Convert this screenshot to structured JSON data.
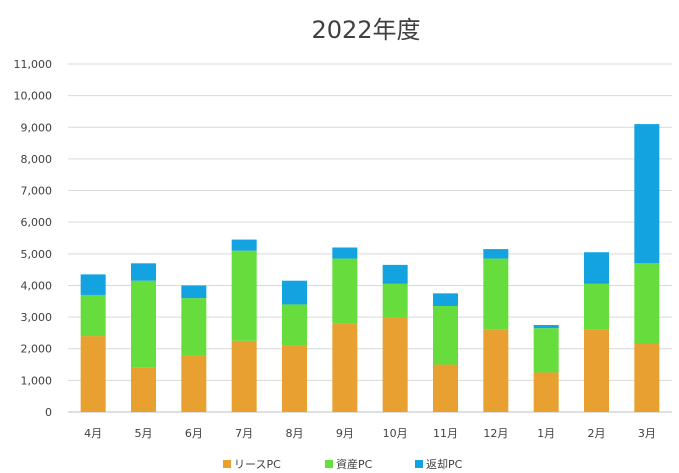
{
  "chart_data": {
    "type": "bar",
    "stacked": true,
    "title": "2022年度",
    "xlabel": "",
    "ylabel": "",
    "categories": [
      "4月",
      "5月",
      "6月",
      "7月",
      "8月",
      "9月",
      "10月",
      "11月",
      "12月",
      "1月",
      "2月",
      "3月"
    ],
    "series": [
      {
        "name": "リースPC",
        "color": "#E8A030",
        "values": [
          2400,
          1400,
          1800,
          2250,
          2100,
          2800,
          3000,
          1500,
          2600,
          1250,
          2600,
          2150
        ]
      },
      {
        "name": "資産PC",
        "color": "#66DD3C",
        "values": [
          1300,
          2750,
          1800,
          2850,
          1300,
          2050,
          1050,
          1850,
          2250,
          1400,
          1450,
          2550
        ]
      },
      {
        "name": "返却PC",
        "color": "#13A3E0",
        "values": [
          650,
          550,
          400,
          350,
          750,
          350,
          600,
          400,
          300,
          100,
          1000,
          4400
        ]
      }
    ],
    "ylim": [
      0,
      11000
    ],
    "yticks": [
      "0",
      "1,000",
      "2,000",
      "3,000",
      "4,000",
      "5,000",
      "6,000",
      "7,000",
      "8,000",
      "9,000",
      "10,000",
      "11,000"
    ],
    "grid": true,
    "legend": "bottom"
  }
}
